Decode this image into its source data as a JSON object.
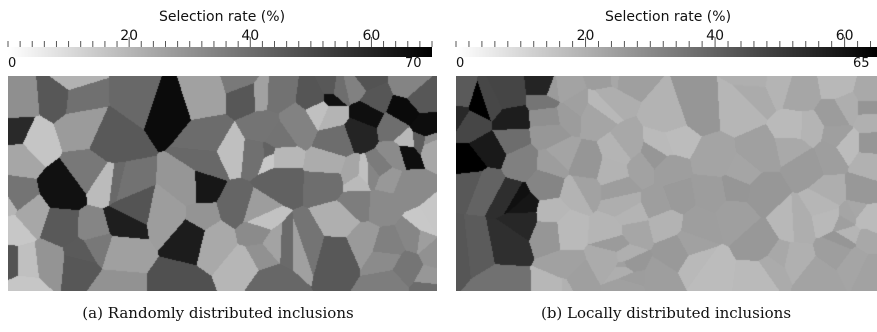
{
  "panels": [
    {
      "colorbar_title": "Selection rate (%)",
      "colorbar_min_label": "0",
      "colorbar_max_label": "70",
      "tick_labels": [
        "20",
        "40",
        "60"
      ],
      "caption": "(a) Randomly distributed inclusions"
    },
    {
      "colorbar_title": "Selection rate (%)",
      "colorbar_min_label": "0",
      "colorbar_max_label": "65",
      "tick_labels": [
        "20",
        "40",
        "60"
      ],
      "caption": "(b) Locally distributed inclusions"
    }
  ],
  "chart_data": [
    {
      "type": "heatmap",
      "colorbar": {
        "title": "Selection rate (%)",
        "range": [
          0,
          70
        ],
        "ticks": [
          20,
          40,
          60
        ],
        "colors": [
          "#ffffff",
          "#000000"
        ]
      },
      "distribution": "random",
      "caption": "(a) Randomly distributed inclusions"
    },
    {
      "type": "heatmap",
      "colorbar": {
        "title": "Selection rate (%)",
        "range": [
          0,
          65
        ],
        "ticks": [
          20,
          40,
          60
        ],
        "colors": [
          "#ffffff",
          "#000000"
        ]
      },
      "distribution": "local",
      "caption": "(b) Locally distributed inclusions"
    }
  ]
}
